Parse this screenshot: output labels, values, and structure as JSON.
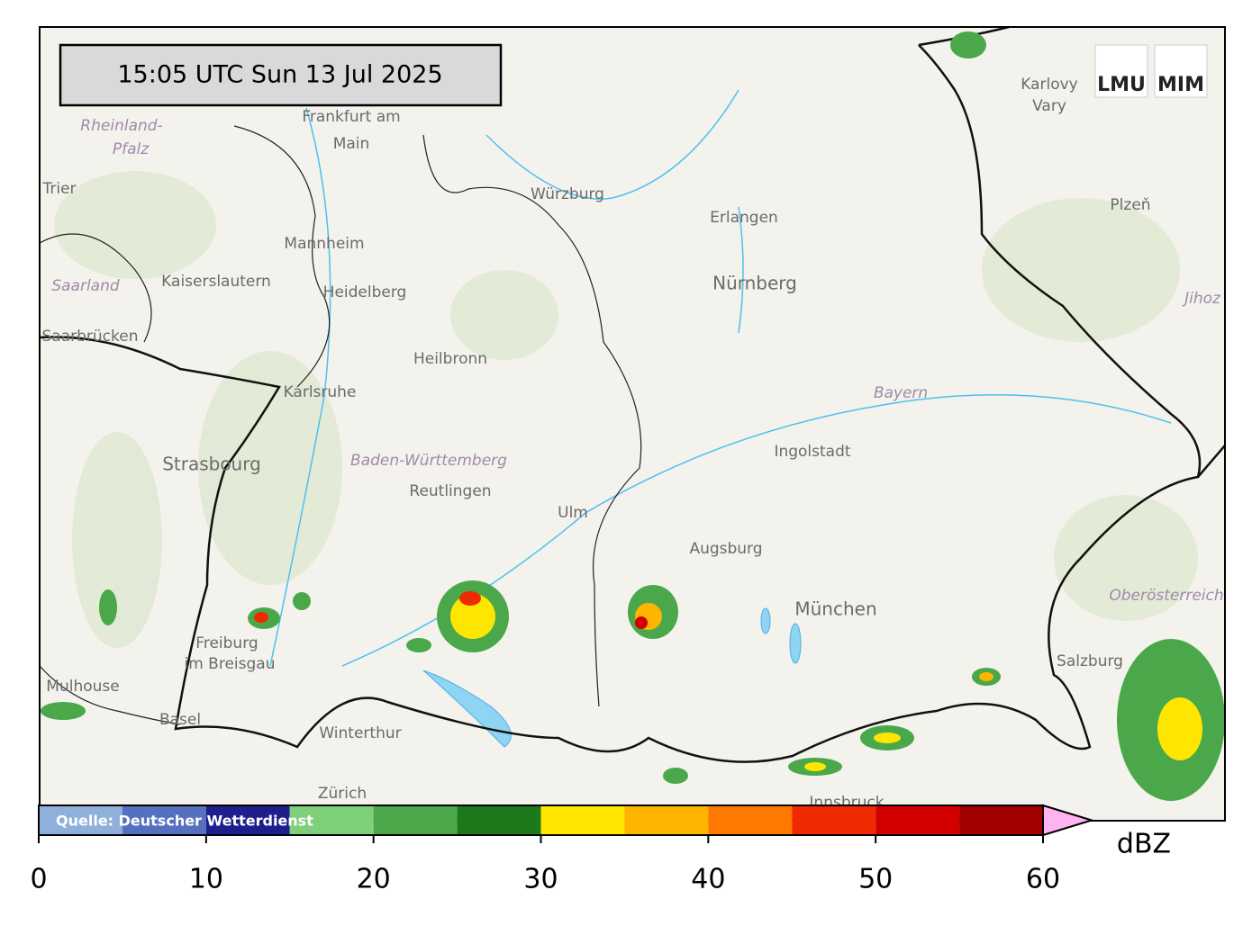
{
  "timestamp": "15:05 UTC  Sun 13 Jul 2025",
  "logos": [
    "LMU",
    "MIM"
  ],
  "source": "Quelle: Deutscher Wetterdienst",
  "cities": [
    "Frankfurt am",
    "Main",
    "Rheinland-",
    "Pfalz",
    "Trier",
    "Würzburg",
    "Erlangen",
    "Karlovy",
    "Vary",
    "Plzeň",
    "Mannheim",
    "Kaiserslautern",
    "Saarland",
    "Heidelberg",
    "Nürnberg",
    "Saarbrücken",
    "Heilbronn",
    "Karlsruhe",
    "Bayern",
    "Ingolstadt",
    "Strasbourg",
    "Baden-Württemberg",
    "Reutlingen",
    "Ulm",
    "Augsburg",
    "München",
    "Oberösterreich",
    "Freiburg",
    "im Breisgau",
    "Mulhouse",
    "Basel",
    "Winterthur",
    "Zürich",
    "Salzburg",
    "Innsbruck",
    "Jihoz"
  ],
  "colorbar": {
    "bounds": [
      0,
      5,
      10,
      15,
      20,
      25,
      30,
      35,
      40,
      45,
      50,
      55,
      60
    ],
    "colors": [
      "#8fb0da",
      "#5670c0",
      "#1e1e8c",
      "#7fd07a",
      "#4aa84a",
      "#1c7a1c",
      "#ffe600",
      "#ffb400",
      "#ff7800",
      "#f02a00",
      "#d40000",
      "#a00000"
    ],
    "extend_color": "#ffb3f0",
    "ticks": [
      0,
      10,
      20,
      30,
      40,
      50,
      60
    ],
    "label": "dBZ"
  }
}
